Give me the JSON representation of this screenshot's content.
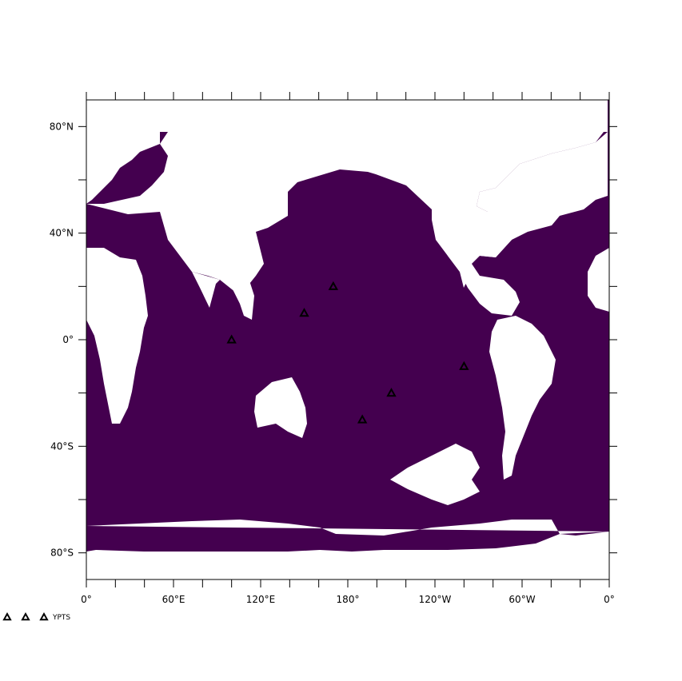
{
  "map": {
    "ocean_color": "#44004f",
    "land_color": "#ffffff",
    "frame_color": "#000000",
    "projection": "plate-carree",
    "lon_range": [
      0,
      360
    ],
    "lat_range": [
      -90,
      90
    ],
    "x_ticks": [
      {
        "lon": 0,
        "label": "0°"
      },
      {
        "lon": 60,
        "label": "60°E"
      },
      {
        "lon": 120,
        "label": "120°E"
      },
      {
        "lon": 180,
        "label": "180°"
      },
      {
        "lon": 240,
        "label": "120°W"
      },
      {
        "lon": 300,
        "label": "60°W"
      },
      {
        "lon": 360,
        "label": "0°"
      }
    ],
    "y_ticks": [
      {
        "lat": 80,
        "label": "80°N"
      },
      {
        "lat": 40,
        "label": "40°N"
      },
      {
        "lat": 0,
        "label": "0°"
      },
      {
        "lat": -40,
        "label": "40°S"
      },
      {
        "lat": -80,
        "label": "80°S"
      }
    ]
  },
  "points": {
    "marker_icon": "triangle-outline-icon",
    "marker_color": "#000000",
    "locations": [
      {
        "lon": 100,
        "lat": 0
      },
      {
        "lon": 150,
        "lat": 10
      },
      {
        "lon": 170,
        "lat": 20
      },
      {
        "lon": 190,
        "lat": -30
      },
      {
        "lon": 210,
        "lat": -20
      },
      {
        "lon": 260,
        "lat": -10
      }
    ]
  },
  "legend": {
    "marker_icon": "triangle-outline-icon",
    "label": "YPTS"
  }
}
